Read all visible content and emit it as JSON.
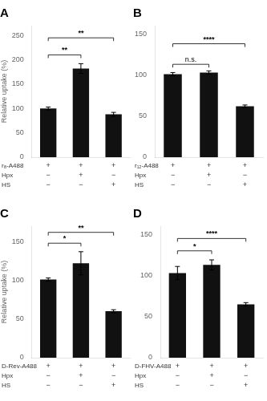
{
  "chart_data": [
    {
      "type": "bar",
      "title": "A",
      "ylabel": "Relative uptake (%)",
      "categories": [
        [
          "+",
          "−",
          "−"
        ],
        [
          "+",
          "+",
          "−"
        ],
        [
          "+",
          "−",
          "+"
        ]
      ],
      "row_labels": [
        "r₈-A488",
        "Hpx",
        "HS"
      ],
      "values": [
        100,
        182,
        88
      ],
      "errors": [
        3,
        10,
        4
      ],
      "color": "#111111",
      "ylim": [
        0,
        270
      ],
      "yticks": [
        0,
        50,
        100,
        150,
        200,
        250
      ],
      "grid": false,
      "annotations": [
        {
          "from": 0,
          "to": 1,
          "y": 210,
          "text": "**"
        },
        {
          "from": 0,
          "to": 2,
          "y": 245,
          "text": "**"
        }
      ]
    },
    {
      "type": "bar",
      "title": "B",
      "categories": [
        [
          "+",
          "−",
          "−"
        ],
        [
          "+",
          "+",
          "−"
        ],
        [
          "+",
          "−",
          "+"
        ]
      ],
      "row_labels": [
        "r₁₂-A488",
        "Hpx",
        "HS"
      ],
      "values": [
        101,
        103,
        62
      ],
      "errors": [
        2,
        2,
        1.5
      ],
      "color": "#111111",
      "ylim": [
        0,
        160
      ],
      "yticks": [
        0,
        50,
        100,
        150
      ],
      "grid": false,
      "annotations": [
        {
          "from": 0,
          "to": 1,
          "y": 113,
          "text": "n.s."
        },
        {
          "from": 0,
          "to": 2,
          "y": 138,
          "text": "****"
        }
      ]
    },
    {
      "type": "bar",
      "title": "C",
      "ylabel": "Relative uptake (%)",
      "categories": [
        [
          "+",
          "−",
          "−"
        ],
        [
          "+",
          "+",
          "−"
        ],
        [
          "+",
          "−",
          "+"
        ]
      ],
      "row_labels": [
        "D-Rev-A488",
        "Hpx",
        "HS"
      ],
      "values": [
        101,
        122,
        60
      ],
      "errors": [
        2,
        15,
        2
      ],
      "color": "#111111",
      "ylim": [
        0,
        170
      ],
      "yticks": [
        0,
        50,
        100,
        150
      ],
      "grid": false,
      "annotations": [
        {
          "from": 0,
          "to": 1,
          "y": 148,
          "text": "*"
        },
        {
          "from": 0,
          "to": 2,
          "y": 162,
          "text": "**"
        }
      ]
    },
    {
      "type": "bar",
      "title": "D",
      "categories": [
        [
          "+",
          "−",
          "−"
        ],
        [
          "+",
          "+",
          "−"
        ],
        [
          "+",
          "−",
          "+"
        ]
      ],
      "row_labels": [
        "D-FHV-A488",
        "Hpx",
        "HS"
      ],
      "values": [
        103,
        113,
        65
      ],
      "errors": [
        8,
        6,
        2
      ],
      "color": "#111111",
      "ylim": [
        0,
        160
      ],
      "yticks": [
        0,
        50,
        100,
        150
      ],
      "grid": false,
      "annotations": [
        {
          "from": 0,
          "to": 1,
          "y": 130,
          "text": "*"
        },
        {
          "from": 0,
          "to": 2,
          "y": 145,
          "text": "****"
        }
      ]
    }
  ]
}
